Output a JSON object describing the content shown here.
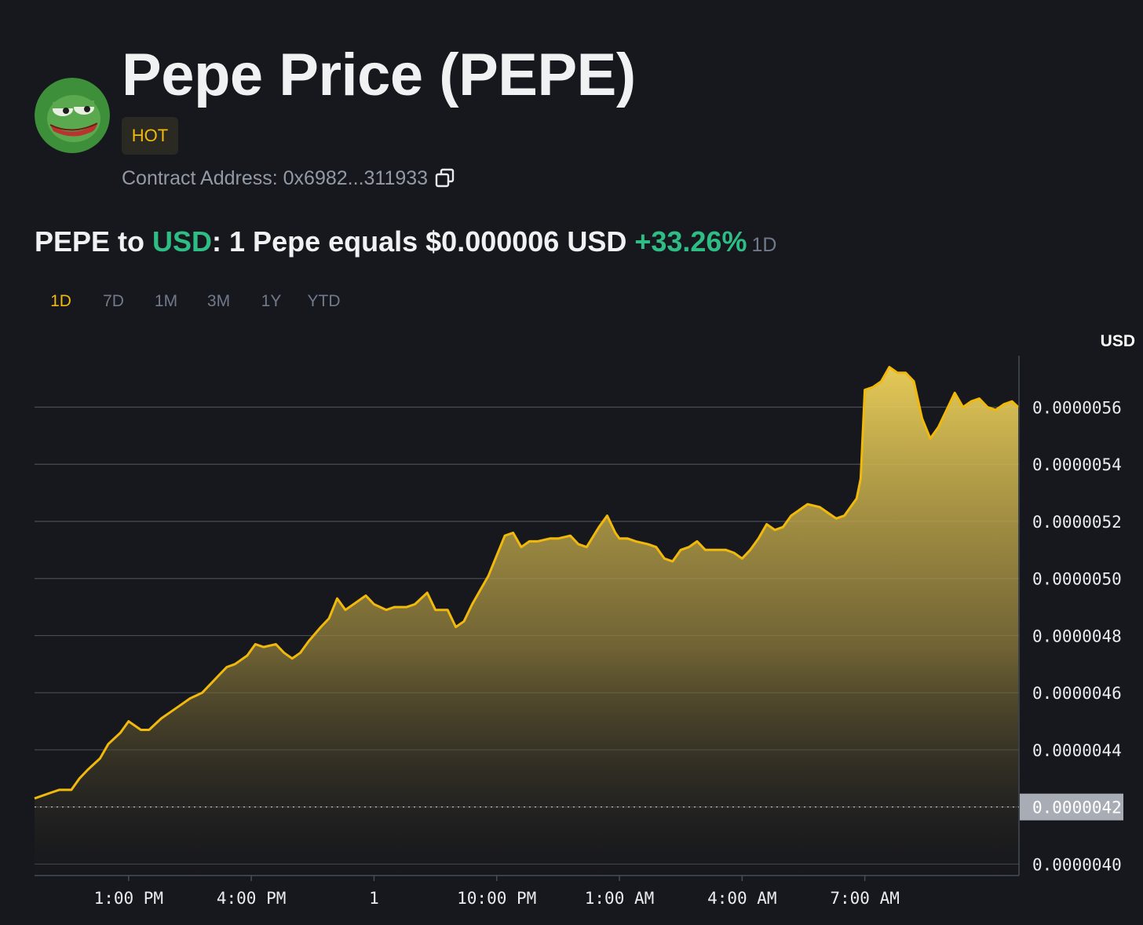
{
  "header": {
    "title": "Pepe Price (PEPE)",
    "badge": "HOT",
    "contract_label": "Contract Address: 0x6982...311933",
    "avatar_icon": "pepe-frog-avatar",
    "copy_icon": "copy-icon"
  },
  "rate": {
    "pair_base": "PEPE to ",
    "pair_quote": "USD",
    "statement": ": 1 Pepe equals $0.000006 USD ",
    "change": "+33.26%",
    "period": "1D"
  },
  "tabs": [
    {
      "label": "1D",
      "active": true
    },
    {
      "label": "7D",
      "active": false
    },
    {
      "label": "1M",
      "active": false
    },
    {
      "label": "3M",
      "active": false
    },
    {
      "label": "1Y",
      "active": false
    },
    {
      "label": "YTD",
      "active": false
    }
  ],
  "colors": {
    "background": "#17181d",
    "line": "#f0b90b",
    "up": "#2ebd85",
    "grid": "#474d57",
    "axis_text": "#eaecef"
  },
  "chart_data": {
    "type": "area",
    "ylabel": "USD",
    "ylim": [
      3.96e-06,
      5.78e-06
    ],
    "yticks": [
      {
        "value": 4e-06,
        "label": "0.0000040"
      },
      {
        "value": 4.2e-06,
        "label": "0.0000042"
      },
      {
        "value": 4.4e-06,
        "label": "0.0000044"
      },
      {
        "value": 4.6e-06,
        "label": "0.0000046"
      },
      {
        "value": 4.8e-06,
        "label": "0.0000048"
      },
      {
        "value": 5e-06,
        "label": "0.0000050"
      },
      {
        "value": 5.2e-06,
        "label": "0.0000052"
      },
      {
        "value": 5.4e-06,
        "label": "0.0000054"
      },
      {
        "value": 5.6e-06,
        "label": "0.0000056"
      }
    ],
    "xlim": [
      10.7,
      34.75
    ],
    "xticks": [
      {
        "value": 13,
        "label": "1:00 PM"
      },
      {
        "value": 16,
        "label": "4:00 PM"
      },
      {
        "value": 19,
        "label": "1"
      },
      {
        "value": 22,
        "label": "10:00 PM"
      },
      {
        "value": 25,
        "label": "1:00 AM"
      },
      {
        "value": 28,
        "label": "4:00 AM"
      },
      {
        "value": 31,
        "label": "7:00 AM"
      }
    ],
    "reference_line": {
      "value": 4.2e-06,
      "label": "0.0000042"
    },
    "grid": true,
    "series": [
      {
        "x": [
          10.7,
          11.1,
          11.3,
          11.6,
          11.8,
          12.0,
          12.3,
          12.5,
          12.8,
          13.0,
          13.3,
          13.5,
          13.8,
          14.0,
          14.3,
          14.5,
          14.8,
          15.0,
          15.2,
          15.4,
          15.6,
          15.9,
          16.1,
          16.3,
          16.6,
          16.8,
          17.0,
          17.2,
          17.4,
          17.7,
          17.9,
          18.1,
          18.3,
          18.5,
          18.8,
          19.0,
          19.3,
          19.5,
          19.8,
          20.0,
          20.3,
          20.5,
          20.8,
          21.0,
          21.2,
          21.4,
          21.6,
          21.8,
          22.0,
          22.2,
          22.4,
          22.6,
          22.8,
          23.0,
          23.3,
          23.5,
          23.8,
          24.0,
          24.2,
          24.5,
          24.7,
          24.9,
          25.0,
          25.2,
          25.4,
          25.7,
          25.9,
          26.1,
          26.3,
          26.5,
          26.7,
          26.9,
          27.1,
          27.3,
          27.6,
          27.8,
          28.0,
          28.2,
          28.4,
          28.6,
          28.8,
          29.0,
          29.2,
          29.4,
          29.6,
          29.9,
          30.1,
          30.3,
          30.5,
          30.7,
          30.8,
          30.9,
          31.0,
          31.2,
          31.4,
          31.6,
          31.8,
          32.0,
          32.2,
          32.4,
          32.6,
          32.8,
          33.0,
          33.2,
          33.4,
          33.6,
          33.8,
          34.0,
          34.2,
          34.4,
          34.6,
          34.75
        ],
        "values": [
          4.23e-06,
          4.25e-06,
          4.26e-06,
          4.26e-06,
          4.3e-06,
          4.33e-06,
          4.37e-06,
          4.42e-06,
          4.46e-06,
          4.5e-06,
          4.47e-06,
          4.47e-06,
          4.51e-06,
          4.53e-06,
          4.56e-06,
          4.58e-06,
          4.6e-06,
          4.63e-06,
          4.66e-06,
          4.69e-06,
          4.7e-06,
          4.73e-06,
          4.77e-06,
          4.76e-06,
          4.77e-06,
          4.74e-06,
          4.72e-06,
          4.74e-06,
          4.78e-06,
          4.83e-06,
          4.86e-06,
          4.93e-06,
          4.89e-06,
          4.91e-06,
          4.94e-06,
          4.91e-06,
          4.89e-06,
          4.9e-06,
          4.9e-06,
          4.91e-06,
          4.95e-06,
          4.89e-06,
          4.89e-06,
          4.83e-06,
          4.85e-06,
          4.91e-06,
          4.96e-06,
          5.01e-06,
          5.08e-06,
          5.15e-06,
          5.16e-06,
          5.11e-06,
          5.13e-06,
          5.13e-06,
          5.14e-06,
          5.14e-06,
          5.15e-06,
          5.12e-06,
          5.11e-06,
          5.18e-06,
          5.22e-06,
          5.16e-06,
          5.14e-06,
          5.14e-06,
          5.13e-06,
          5.12e-06,
          5.11e-06,
          5.07e-06,
          5.06e-06,
          5.1e-06,
          5.11e-06,
          5.13e-06,
          5.1e-06,
          5.1e-06,
          5.1e-06,
          5.09e-06,
          5.07e-06,
          5.1e-06,
          5.14e-06,
          5.19e-06,
          5.17e-06,
          5.18e-06,
          5.22e-06,
          5.24e-06,
          5.26e-06,
          5.25e-06,
          5.23e-06,
          5.21e-06,
          5.22e-06,
          5.26e-06,
          5.28e-06,
          5.35e-06,
          5.66e-06,
          5.67e-06,
          5.69e-06,
          5.74e-06,
          5.72e-06,
          5.72e-06,
          5.69e-06,
          5.56e-06,
          5.49e-06,
          5.53e-06,
          5.59e-06,
          5.65e-06,
          5.6e-06,
          5.62e-06,
          5.63e-06,
          5.6e-06,
          5.59e-06,
          5.61e-06,
          5.62e-06,
          5.6e-06
        ]
      }
    ]
  }
}
